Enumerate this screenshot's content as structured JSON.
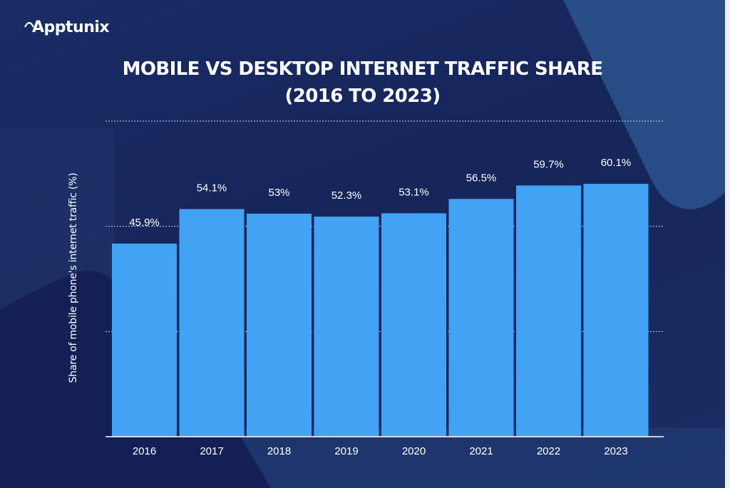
{
  "brand": {
    "name": "Apptunix",
    "logo_icon": "arc-a-logo-icon"
  },
  "colors": {
    "background": "#17275c",
    "bar": "#42a2f3",
    "text": "#ffffff",
    "accent_shape": "#284c85"
  },
  "chart_data": {
    "type": "bar",
    "title": "MOBILE VS DESKTOP INTERNET TRAFFIC SHARE",
    "subtitle": "(2016 TO 2023)",
    "xlabel": "",
    "ylabel": "Share of mobile phone's internet traffic (%)",
    "categories": [
      "2016",
      "2017",
      "2018",
      "2019",
      "2020",
      "2021",
      "2022",
      "2023"
    ],
    "values": [
      45.9,
      54.1,
      53,
      52.3,
      53.1,
      56.5,
      59.7,
      60.1
    ],
    "data_labels": [
      "45.9%",
      "54.1%",
      "53%",
      "52.3%",
      "53.1%",
      "56.5%",
      "59.7%",
      "60.1%"
    ],
    "ylim": [
      0,
      75
    ],
    "gridlines": [
      25,
      50,
      75
    ],
    "grid": true,
    "grid_style": "dotted",
    "y_tick_labels_visible": false,
    "legend": "none"
  }
}
